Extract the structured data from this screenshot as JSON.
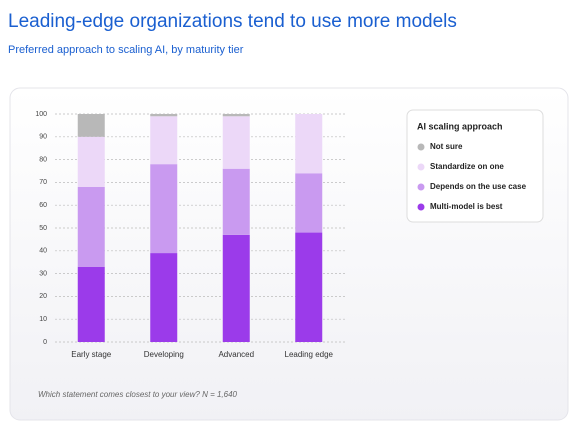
{
  "chart_data": {
    "type": "stacked_bar",
    "title": "Leading-edge organizations tend to use more models",
    "subtitle": "Preferred approach to scaling AI, by maturity tier",
    "categories": [
      "Early stage",
      "Developing",
      "Advanced",
      "Leading edge"
    ],
    "series": [
      {
        "name": "Multi-model is best",
        "color": "#9b3bea",
        "values": [
          33,
          39,
          47,
          48
        ]
      },
      {
        "name": "Depends on the use case",
        "color": "#c99af0",
        "values": [
          35,
          39,
          29,
          26
        ]
      },
      {
        "name": "Standardize on one",
        "color": "#ecd8f8",
        "values": [
          22,
          21,
          23,
          26
        ]
      },
      {
        "name": "Not sure",
        "color": "#b8b8b8",
        "values": [
          10,
          1,
          1,
          0
        ]
      }
    ],
    "legend_title": "AI scaling approach",
    "legend_position": "upper right",
    "ylim": [
      0,
      100
    ],
    "yticks": [
      0,
      10,
      20,
      30,
      40,
      50,
      60,
      70,
      80,
      90,
      100
    ],
    "grid": true,
    "note": "Which statement comes closest to your view? N = 1,640"
  }
}
